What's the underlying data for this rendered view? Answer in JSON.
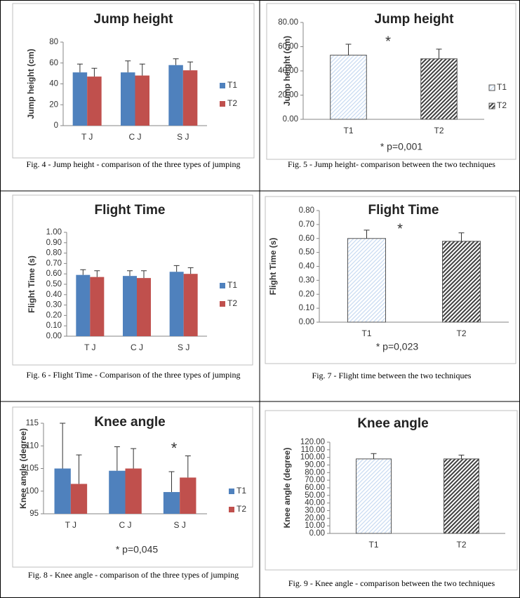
{
  "chart_data": [
    {
      "type": "bar",
      "title": "Jump height",
      "y_label": "Jump height (cm)",
      "categories": [
        "T J",
        "C J",
        "S J"
      ],
      "series": [
        {
          "name": "T1",
          "color": "#4f81bd",
          "values": [
            51,
            51,
            58
          ],
          "errors": [
            8,
            11,
            6
          ]
        },
        {
          "name": "T2",
          "color": "#c0504d",
          "values": [
            47,
            48,
            53
          ],
          "errors": [
            8,
            11,
            8
          ]
        }
      ],
      "ylim": [
        0,
        80
      ],
      "yticks": [
        0,
        20,
        40,
        60,
        80
      ],
      "legend": "right",
      "caption": "Fig. 4 - Jump height - comparison of the three types of jumping"
    },
    {
      "type": "bar",
      "title": "Jump height",
      "y_label": "Jump height (cm)",
      "categories": [
        "T1",
        "T2"
      ],
      "values": [
        53,
        50
      ],
      "errors": [
        9,
        8
      ],
      "colors": [
        "#c6d9f1",
        "#404040"
      ],
      "ylim": [
        0,
        80
      ],
      "yticks": [
        {
          "value": 0,
          "label": "0.00"
        },
        {
          "value": 20,
          "label": "20.00"
        },
        {
          "value": 40,
          "label": "40.00"
        },
        {
          "value": 60,
          "label": "60.00"
        },
        {
          "value": 80,
          "label": "80.00"
        }
      ],
      "legend": "right",
      "annotations": [
        "*",
        "* p=0,001"
      ],
      "caption": "Fig. 5 - Jump height- comparison between the two techniques"
    },
    {
      "type": "bar",
      "title": "Flight Time",
      "y_label": "Flight Time (s)",
      "categories": [
        "T J",
        "C J",
        "S J"
      ],
      "series": [
        {
          "name": "T1",
          "color": "#4f81bd",
          "values": [
            0.59,
            0.58,
            0.62
          ],
          "errors": [
            0.05,
            0.05,
            0.06
          ]
        },
        {
          "name": "T2",
          "color": "#c0504d",
          "values": [
            0.57,
            0.56,
            0.6
          ],
          "errors": [
            0.06,
            0.07,
            0.06
          ]
        }
      ],
      "ylim": [
        0,
        1
      ],
      "yticks": [
        {
          "value": 0,
          "label": "0.00"
        },
        {
          "value": 0.1,
          "label": "0.10"
        },
        {
          "value": 0.2,
          "label": "0.20"
        },
        {
          "value": 0.3,
          "label": "0.30"
        },
        {
          "value": 0.4,
          "label": "0.40"
        },
        {
          "value": 0.5,
          "label": "0.50"
        },
        {
          "value": 0.6,
          "label": "0.60"
        },
        {
          "value": 0.7,
          "label": "0.70"
        },
        {
          "value": 0.8,
          "label": "0.80"
        },
        {
          "value": 0.9,
          "label": "0.90"
        },
        {
          "value": 1,
          "label": "1.00"
        }
      ],
      "legend": "right",
      "caption": "Fig. 6 - Flight Time - Comparison of the three types of jumping"
    },
    {
      "type": "bar",
      "title": "Flight Time",
      "y_label": "Flight Time (s)",
      "categories": [
        "T1",
        "T2"
      ],
      "values": [
        0.6,
        0.58
      ],
      "errors": [
        0.06,
        0.06
      ],
      "colors": [
        "#c6d9f1",
        "#404040"
      ],
      "ylim": [
        0,
        0.8
      ],
      "yticks": [
        {
          "value": 0,
          "label": "0.00"
        },
        {
          "value": 0.1,
          "label": "0.10"
        },
        {
          "value": 0.2,
          "label": "0.20"
        },
        {
          "value": 0.3,
          "label": "0.30"
        },
        {
          "value": 0.4,
          "label": "0.40"
        },
        {
          "value": 0.5,
          "label": "0.50"
        },
        {
          "value": 0.6,
          "label": "0.60"
        },
        {
          "value": 0.7,
          "label": "0.70"
        },
        {
          "value": 0.8,
          "label": "0.80"
        }
      ],
      "annotations": [
        "*",
        "* p=0,023"
      ],
      "caption": "Fig. 7 - Flight time between the two techniques"
    },
    {
      "type": "bar",
      "title": "Knee angle",
      "y_label": "Knee angle (degree)",
      "categories": [
        "T J",
        "C J",
        "S J"
      ],
      "series": [
        {
          "name": "T1",
          "color": "#4f81bd",
          "values": [
            105,
            104.5,
            99.8
          ],
          "errors": [
            10,
            5.3,
            4.5
          ]
        },
        {
          "name": "T2",
          "color": "#c0504d",
          "values": [
            101.6,
            105,
            103
          ],
          "errors": [
            6.4,
            4.4,
            4.8
          ]
        }
      ],
      "ylim": [
        95,
        115
      ],
      "yticks": [
        95,
        100,
        105,
        110,
        115
      ],
      "legend": "right",
      "annotations": [
        "*",
        "* p=0,045"
      ],
      "caption": "Fig. 8 - Knee angle - comparison of the three types of jumping"
    },
    {
      "type": "bar",
      "title": "Knee angle",
      "y_label": "Knee angle (degree)",
      "categories": [
        "T1",
        "T2"
      ],
      "values": [
        98,
        98
      ],
      "errors": [
        7,
        5
      ],
      "colors": [
        "#c6d9f1",
        "#404040"
      ],
      "ylim": [
        0,
        120
      ],
      "yticks": [
        {
          "value": 0,
          "label": "0.00"
        },
        {
          "value": 10,
          "label": "10.00"
        },
        {
          "value": 20,
          "label": "20.00"
        },
        {
          "value": 30,
          "label": "30.00"
        },
        {
          "value": 40,
          "label": "40.00"
        },
        {
          "value": 50,
          "label": "50.00"
        },
        {
          "value": 60,
          "label": "60.00"
        },
        {
          "value": 70,
          "label": "70.00"
        },
        {
          "value": 80,
          "label": "80.00"
        },
        {
          "value": 90,
          "label": "90.00"
        },
        {
          "value": 100,
          "label": "100.00"
        },
        {
          "value": 110,
          "label": "110.00"
        },
        {
          "value": 120,
          "label": "120.00"
        }
      ],
      "caption": "Fig. 9 - Knee angle - comparison between the two techniques"
    }
  ]
}
